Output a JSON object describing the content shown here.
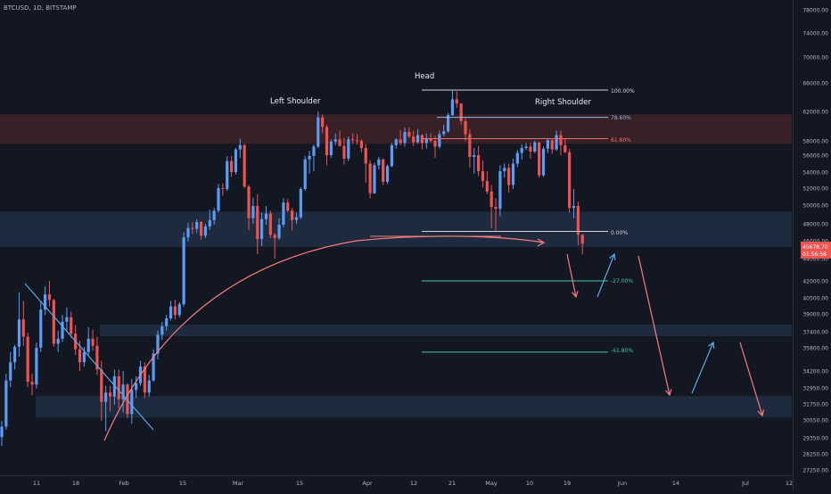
{
  "header": {
    "title": "BTCUSD, 1D, BITSTAMP"
  },
  "colors": {
    "background": "#131722",
    "up": "#5b9cf6",
    "down": "#ef5350",
    "axis_text": "#b2b5be",
    "axis_line": "#2a2e39",
    "resistance_zone": "#3a2128",
    "support_zone": "#1e2a3d",
    "fib_white": "#d1d4dc",
    "fib_blue": "#8fb8e6",
    "fib_red": "#f27272",
    "fib_teal": "#40c4a8",
    "arrow_red": "#f77c80",
    "arrow_blue": "#5aa9e6",
    "price_tag_bg": "#ef5350"
  },
  "price_tag": {
    "price": "45678.70",
    "countdown": "01:56:58"
  },
  "annotations": {
    "head": "Head",
    "left_shoulder": "Left Shoulder",
    "right_shoulder": "Right Shoulder"
  },
  "fib_labels": {
    "l100": "100.00%",
    "l786": "78.60%",
    "l618": "61.80%",
    "l0": "0.00%",
    "lm27": "-27.00%",
    "lm618": "-61.80%"
  },
  "chart_data": {
    "type": "candlestick",
    "title": "BTCUSD, 1D, BITSTAMP",
    "symbol": "BTCUSD",
    "interval": "1D",
    "exchange": "BITSTAMP",
    "x_ticks": [
      "11",
      "18",
      "Feb",
      "15",
      "Mar",
      "15",
      "Apr",
      "12",
      "21",
      "May",
      "10",
      "19",
      "Jun",
      "14",
      "Jul",
      "12"
    ],
    "y_ticks": [
      "78000.00",
      "74000.00",
      "70000.00",
      "66000.00",
      "62000.00",
      "58000.00",
      "56000.00",
      "54000.00",
      "52000.00",
      "50000.00",
      "48000.00",
      "46000.00",
      "44000.00",
      "42000.00",
      "40500.00",
      "39000.00",
      "37400.00",
      "35800.00",
      "34200.00",
      "32950.00",
      "31750.00",
      "30550.00",
      "29350.00",
      "28250.00",
      "27250.00"
    ],
    "ohlc": [
      [
        29400,
        30500,
        28800,
        30100
      ],
      [
        30100,
        34000,
        29900,
        33500
      ],
      [
        33500,
        35500,
        33000,
        34800
      ],
      [
        34800,
        36100,
        34300,
        35900
      ],
      [
        35900,
        41000,
        35200,
        38500
      ],
      [
        38500,
        40200,
        36000,
        36900
      ],
      [
        36900,
        37300,
        33000,
        33400
      ],
      [
        33400,
        34000,
        32400,
        33200
      ],
      [
        33200,
        36300,
        32900,
        35800
      ],
      [
        35800,
        40200,
        35500,
        39400
      ],
      [
        39400,
        41500,
        38900,
        40800
      ],
      [
        40800,
        42000,
        39700,
        40300
      ],
      [
        40300,
        40400,
        35900,
        36200
      ],
      [
        36200,
        37500,
        35500,
        36700
      ],
      [
        36700,
        38900,
        36400,
        38300
      ],
      [
        38300,
        39600,
        37400,
        38700
      ],
      [
        38700,
        39200,
        36800,
        37200
      ],
      [
        37200,
        38000,
        35300,
        35700
      ],
      [
        35700,
        36500,
        34200,
        34800
      ],
      [
        34800,
        35900,
        34500,
        35500
      ],
      [
        35500,
        37800,
        35300,
        36700
      ],
      [
        36700,
        37600,
        35600,
        36000
      ],
      [
        36000,
        36900,
        33900,
        34300
      ],
      [
        34300,
        34900,
        30500,
        31900
      ],
      [
        31900,
        33100,
        29800,
        32600
      ],
      [
        32600,
        33100,
        31200,
        32300
      ],
      [
        32300,
        34300,
        31700,
        33800
      ],
      [
        33800,
        34300,
        31400,
        32100
      ],
      [
        32100,
        34200,
        31100,
        33200
      ],
      [
        33200,
        33300,
        30700,
        31000
      ],
      [
        31000,
        33600,
        30300,
        32800
      ],
      [
        32800,
        33800,
        32200,
        33300
      ],
      [
        33300,
        34900,
        33100,
        34500
      ],
      [
        34500,
        34800,
        32200,
        32600
      ],
      [
        32600,
        33900,
        32300,
        33500
      ],
      [
        33500,
        35700,
        33400,
        35400
      ],
      [
        35400,
        37500,
        35000,
        37100
      ],
      [
        37100,
        38300,
        36600,
        37900
      ],
      [
        37900,
        38900,
        37500,
        38600
      ],
      [
        38600,
        40200,
        38400,
        39700
      ],
      [
        39700,
        40300,
        38500,
        38900
      ],
      [
        38900,
        40100,
        38700,
        39900
      ],
      [
        39900,
        47000,
        39700,
        46400
      ],
      [
        46400,
        48100,
        45900,
        47500
      ],
      [
        47500,
        48200,
        46800,
        47400
      ],
      [
        47400,
        48500,
        46900,
        48200
      ],
      [
        48200,
        48300,
        46100,
        46600
      ],
      [
        46600,
        48000,
        46300,
        47700
      ],
      [
        47700,
        49500,
        47300,
        48400
      ],
      [
        48400,
        49700,
        47900,
        49400
      ],
      [
        49400,
        52500,
        49200,
        52000
      ],
      [
        52000,
        52600,
        51100,
        51900
      ],
      [
        51900,
        55900,
        51700,
        55300
      ],
      [
        55300,
        55900,
        53400,
        54000
      ],
      [
        54000,
        57000,
        53700,
        56800
      ],
      [
        56800,
        58300,
        55700,
        57400
      ],
      [
        57400,
        57600,
        52000,
        52200
      ],
      [
        52200,
        52400,
        47300,
        48600
      ],
      [
        48600,
        50900,
        48000,
        49900
      ],
      [
        49900,
        51300,
        44500,
        46200
      ],
      [
        46200,
        49200,
        45400,
        48500
      ],
      [
        48500,
        49900,
        47900,
        49100
      ],
      [
        49100,
        49400,
        46300,
        46700
      ],
      [
        46700,
        46900,
        44000,
        46300
      ],
      [
        46300,
        48600,
        46100,
        47900
      ],
      [
        47900,
        50800,
        47600,
        50300
      ],
      [
        50300,
        50700,
        49200,
        49400
      ],
      [
        49400,
        49700,
        47200,
        48400
      ],
      [
        48400,
        49200,
        48000,
        48700
      ],
      [
        48700,
        52100,
        48500,
        51900
      ],
      [
        51900,
        55900,
        51700,
        55500
      ],
      [
        55500,
        56600,
        53800,
        55900
      ],
      [
        55900,
        57500,
        54100,
        57200
      ],
      [
        57200,
        62000,
        57000,
        61200
      ],
      [
        61200,
        61600,
        59000,
        59900
      ],
      [
        59900,
        60200,
        54800,
        56000
      ],
      [
        56000,
        58200,
        55700,
        57900
      ],
      [
        57900,
        59000,
        57400,
        58200
      ],
      [
        58200,
        59400,
        57200,
        57300
      ],
      [
        57300,
        58400,
        54900,
        55600
      ],
      [
        55600,
        58600,
        55300,
        58200
      ],
      [
        58200,
        59000,
        57600,
        58100
      ],
      [
        58100,
        58900,
        57500,
        58000
      ],
      [
        58000,
        58200,
        56400,
        57000
      ],
      [
        57000,
        57600,
        52700,
        55000
      ],
      [
        55000,
        55400,
        50800,
        51400
      ],
      [
        51400,
        55100,
        51300,
        54800
      ],
      [
        54800,
        55800,
        54300,
        55500
      ],
      [
        55500,
        55600,
        52400,
        52800
      ],
      [
        52800,
        54900,
        52500,
        54700
      ],
      [
        54700,
        57700,
        54600,
        57400
      ],
      [
        57400,
        58400,
        56900,
        58200
      ],
      [
        58200,
        59500,
        57400,
        57700
      ],
      [
        57700,
        59800,
        57200,
        59200
      ],
      [
        59200,
        59800,
        58400,
        58600
      ],
      [
        58600,
        59400,
        57300,
        57800
      ],
      [
        57800,
        59600,
        57600,
        58800
      ],
      [
        58800,
        58900,
        56800,
        57700
      ],
      [
        57700,
        59000,
        56900,
        58300
      ],
      [
        58300,
        59000,
        57800,
        58000
      ],
      [
        58000,
        58700,
        55700,
        57200
      ],
      [
        57200,
        59400,
        56900,
        58900
      ],
      [
        58900,
        60200,
        58600,
        59300
      ],
      [
        59300,
        61800,
        59100,
        61500
      ],
      [
        61500,
        64900,
        61400,
        63700
      ],
      [
        63700,
        64800,
        62500,
        63100
      ],
      [
        63100,
        63200,
        60200,
        60700
      ],
      [
        60700,
        61200,
        58000,
        58900
      ],
      [
        58900,
        59600,
        54500,
        55800
      ],
      [
        55800,
        57000,
        53800,
        56000
      ],
      [
        56000,
        57300,
        53500,
        54100
      ],
      [
        54100,
        55400,
        52100,
        52900
      ],
      [
        52900,
        54100,
        51300,
        51600
      ],
      [
        51600,
        52400,
        47500,
        49800
      ],
      [
        49800,
        50800,
        47100,
        49600
      ],
      [
        49600,
        54800,
        48800,
        54100
      ],
      [
        54100,
        55000,
        53300,
        54500
      ],
      [
        54500,
        55000,
        51500,
        52400
      ],
      [
        52400,
        55600,
        51900,
        55000
      ],
      [
        55000,
        56700,
        54600,
        56300
      ],
      [
        56300,
        57500,
        55500,
        57000
      ],
      [
        57000,
        57700,
        56700,
        57200
      ],
      [
        57200,
        57700,
        55600,
        56500
      ],
      [
        56500,
        58000,
        56300,
        57800
      ],
      [
        57800,
        57800,
        53300,
        53600
      ],
      [
        53600,
        57200,
        53400,
        56900
      ],
      [
        56900,
        58300,
        56300,
        58100
      ],
      [
        58100,
        58400,
        56200,
        56800
      ],
      [
        56800,
        59400,
        56600,
        58800
      ],
      [
        58800,
        59400,
        56000,
        57400
      ],
      [
        57400,
        58300,
        56300,
        56400
      ],
      [
        56400,
        56900,
        49200,
        49700
      ],
      [
        49700,
        51900,
        48600,
        49900
      ],
      [
        49900,
        50400,
        45500,
        46700
      ],
      [
        46700,
        46800,
        44500,
        45679
      ]
    ]
  }
}
